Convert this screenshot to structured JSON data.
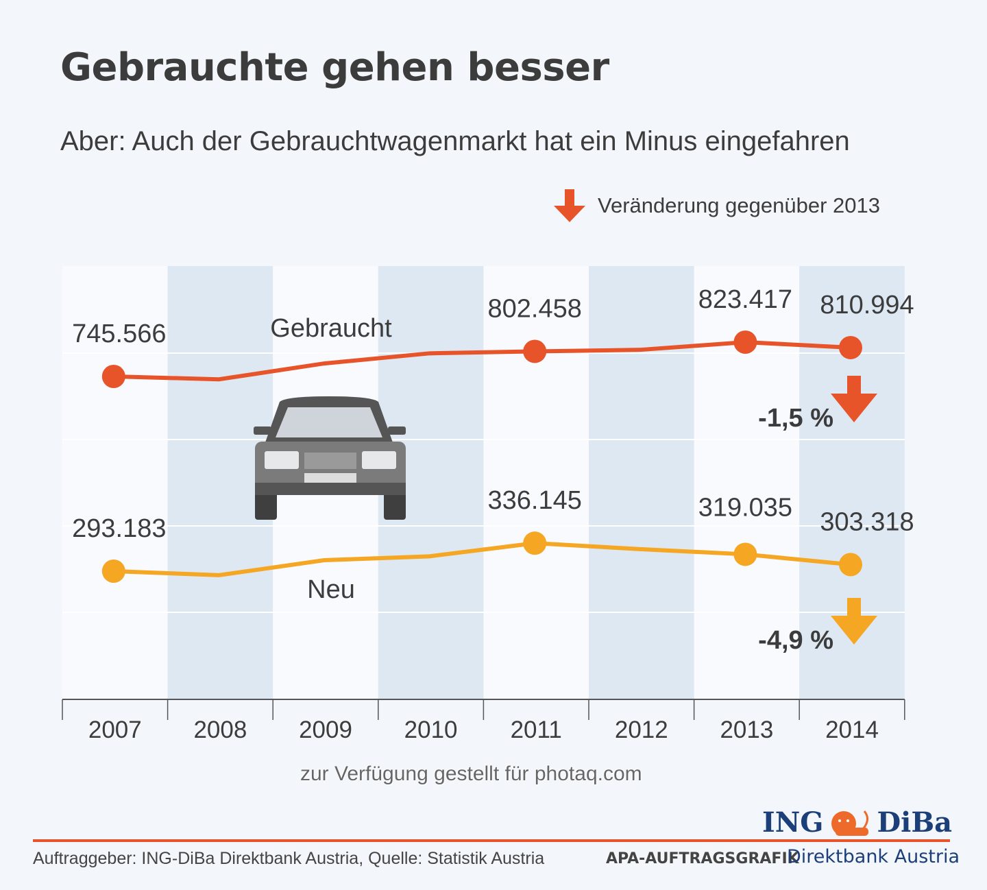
{
  "chart_data": {
    "type": "line",
    "title": "Gebrauchte gehen besser",
    "subtitle": "Aber: Auch der Gebrauchtwagenmarkt hat ein Minus eingefahren",
    "legend": "Veränderung gegenüber 2013",
    "categories": [
      "2007",
      "2008",
      "2009",
      "2010",
      "2011",
      "2012",
      "2013",
      "2014"
    ],
    "series": [
      {
        "name": "Gebraucht",
        "color": "#e8542a",
        "values": [
          745566,
          739000,
          775000,
          798000,
          802458,
          806000,
          823417,
          810994
        ],
        "labels": {
          "0": "745.566",
          "4": "802.458",
          "6": "823.417",
          "7": "810.994"
        },
        "change": "-1,5 %"
      },
      {
        "name": "Neu",
        "color": "#f5a623",
        "values": [
          293183,
          287000,
          310000,
          316000,
          336145,
          327000,
          319035,
          303318
        ],
        "labels": {
          "0": "293.183",
          "4": "336.145",
          "6": "319.035",
          "7": "303.318"
        },
        "change": "-4,9 %"
      }
    ],
    "grid": true
  },
  "watermark": "zur Verfügung gestellt für photaq.com",
  "footer": {
    "source": "Auftraggeber: ING-DiBa Direktbank Austria, Quelle: Statistik Austria",
    "apa": "APA-AUFTRAGSGRAFIK",
    "brand": "ING DiBa",
    "brand_left": "ING",
    "brand_right": "DiBa",
    "brand_sub": "Direktbank Austria"
  },
  "icons": {
    "legend": "arrow-down-icon",
    "illustration": "car-icon",
    "logo": "lion-icon"
  }
}
